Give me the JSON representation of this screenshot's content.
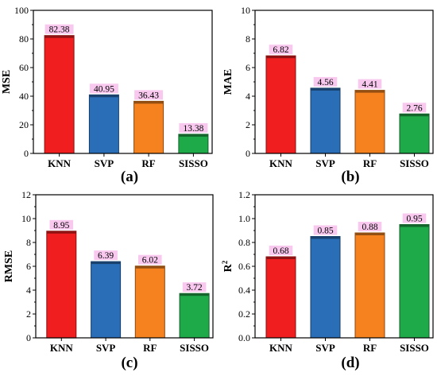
{
  "chart_data": [
    {
      "type": "bar",
      "panel_label": "(a)",
      "ylabel": "MSE",
      "ylim": [
        0,
        100
      ],
      "yticks": [
        "0",
        "20",
        "40",
        "60",
        "80",
        "100"
      ],
      "categories": [
        "KNN",
        "SVP",
        "RF",
        "SISSO"
      ],
      "values": [
        82.38,
        40.95,
        36.43,
        13.38
      ],
      "value_labels": [
        "82.38",
        "40.95",
        "36.43",
        "13.38"
      ]
    },
    {
      "type": "bar",
      "panel_label": "(b)",
      "ylabel": "MAE",
      "ylim": [
        0,
        10
      ],
      "yticks": [
        "0",
        "2",
        "4",
        "6",
        "8",
        "10"
      ],
      "categories": [
        "KNN",
        "SVP",
        "RF",
        "SISSO"
      ],
      "values": [
        6.82,
        4.56,
        4.41,
        2.76
      ],
      "value_labels": [
        "6.82",
        "4.56",
        "4.41",
        "2.76"
      ]
    },
    {
      "type": "bar",
      "panel_label": "(c)",
      "ylabel": "RMSE",
      "ylim": [
        0,
        12
      ],
      "yticks": [
        "0",
        "2",
        "4",
        "6",
        "8",
        "10",
        "12"
      ],
      "categories": [
        "KNN",
        "SVP",
        "RF",
        "SISSO"
      ],
      "values": [
        8.95,
        6.39,
        6.02,
        3.72
      ],
      "value_labels": [
        "8.95",
        "6.39",
        "6.02",
        "3.72"
      ]
    },
    {
      "type": "bar",
      "panel_label": "(d)",
      "ylabel": "R",
      "ylabel_sup": "2",
      "ylim": [
        0,
        1.2
      ],
      "yticks": [
        "0.0",
        "0.2",
        "0.4",
        "0.6",
        "0.8",
        "1.0",
        "1.2"
      ],
      "categories": [
        "KNN",
        "SVP",
        "RF",
        "SISSO"
      ],
      "values": [
        0.68,
        0.85,
        0.88,
        0.95
      ],
      "value_labels": [
        "0.68",
        "0.85",
        "0.88",
        "0.95"
      ]
    }
  ],
  "colors": {
    "KNN": "#f01e1e",
    "SVP": "#2a6eb8",
    "RF": "#f5821e",
    "SISSO": "#1faa4a",
    "label_highlight": "#f7b6ea"
  }
}
